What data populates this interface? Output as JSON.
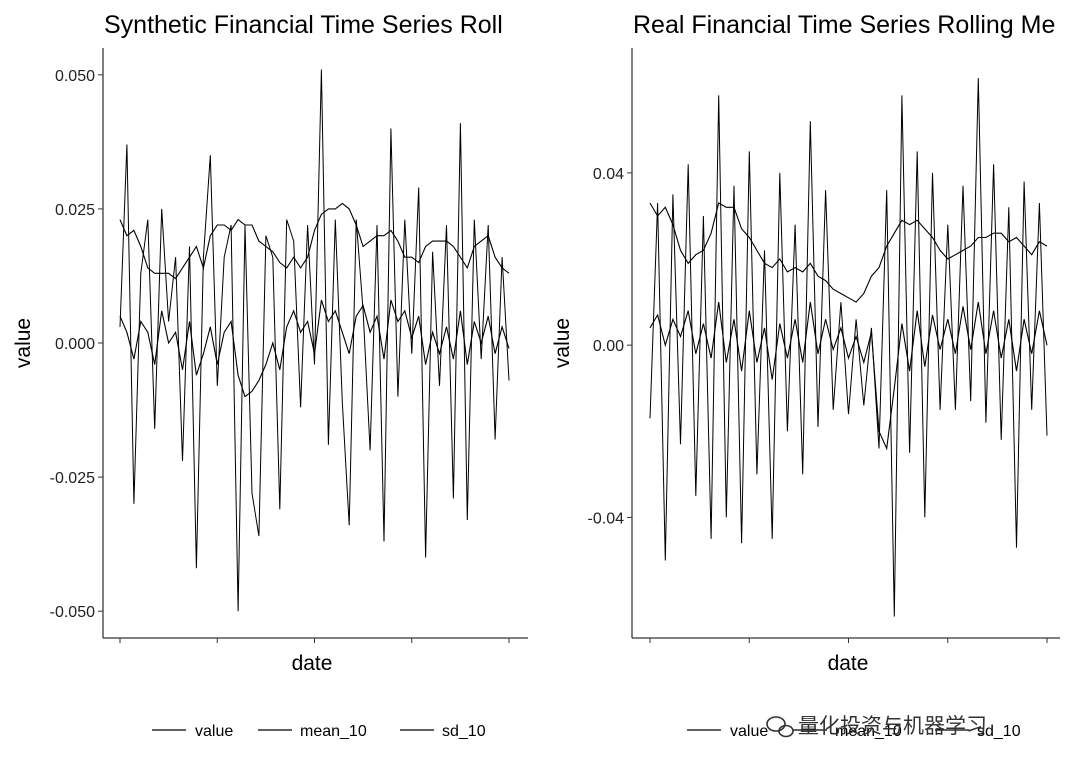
{
  "watermark": "量化投资与机器学习",
  "line_color": "#000000",
  "chart_data": [
    {
      "type": "line",
      "title": "Synthetic Financial Time Series Roll",
      "xlabel": "date",
      "ylabel": "value",
      "x_tick_count": 5,
      "ylim": [
        -0.055,
        0.055
      ],
      "yticks": [
        -0.05,
        -0.025,
        0.0,
        0.025,
        0.05
      ],
      "ytick_labels": [
        "-0.050",
        "-0.025",
        "0.000",
        "0.025",
        "0.050"
      ],
      "legend": {
        "position": "bottom",
        "labels": [
          "value",
          "mean_10",
          "sd_10"
        ]
      },
      "series": [
        {
          "name": "value",
          "values": [
            0.003,
            0.037,
            -0.03,
            0.013,
            0.023,
            -0.016,
            0.025,
            0.004,
            0.016,
            -0.022,
            0.018,
            -0.042,
            0.016,
            0.035,
            -0.008,
            0.016,
            0.022,
            -0.05,
            0.022,
            -0.028,
            -0.036,
            0.02,
            0.016,
            -0.031,
            0.023,
            0.019,
            -0.012,
            0.022,
            -0.004,
            0.051,
            -0.019,
            0.023,
            -0.011,
            -0.034,
            0.023,
            0.006,
            -0.02,
            0.022,
            -0.037,
            0.04,
            -0.01,
            0.023,
            -0.002,
            0.029,
            -0.04,
            0.017,
            -0.008,
            0.022,
            -0.029,
            0.041,
            -0.033,
            0.023,
            -0.003,
            0.022,
            -0.018,
            0.016,
            -0.007
          ]
        },
        {
          "name": "mean_10",
          "values": [
            0.005,
            0.002,
            -0.003,
            0.004,
            0.002,
            -0.004,
            0.006,
            0.0,
            0.002,
            -0.005,
            0.004,
            -0.006,
            -0.002,
            0.003,
            -0.004,
            0.002,
            0.004,
            -0.006,
            -0.01,
            -0.009,
            -0.007,
            -0.004,
            0.0,
            -0.005,
            0.003,
            0.006,
            0.002,
            0.004,
            -0.002,
            0.008,
            0.004,
            0.006,
            0.002,
            -0.002,
            0.005,
            0.007,
            0.002,
            0.005,
            -0.003,
            0.008,
            0.004,
            0.006,
            0.001,
            0.005,
            -0.004,
            0.002,
            -0.002,
            0.003,
            -0.003,
            0.006,
            -0.004,
            0.004,
            0.0,
            0.005,
            -0.002,
            0.003,
            -0.001
          ]
        },
        {
          "name": "sd_10",
          "values": [
            0.023,
            0.02,
            0.021,
            0.018,
            0.014,
            0.013,
            0.013,
            0.013,
            0.012,
            0.014,
            0.016,
            0.018,
            0.014,
            0.02,
            0.022,
            0.022,
            0.021,
            0.023,
            0.022,
            0.022,
            0.019,
            0.018,
            0.017,
            0.015,
            0.014,
            0.016,
            0.014,
            0.016,
            0.021,
            0.024,
            0.025,
            0.025,
            0.026,
            0.025,
            0.022,
            0.018,
            0.019,
            0.02,
            0.02,
            0.021,
            0.019,
            0.016,
            0.016,
            0.015,
            0.018,
            0.019,
            0.019,
            0.019,
            0.018,
            0.016,
            0.014,
            0.018,
            0.019,
            0.02,
            0.016,
            0.014,
            0.013
          ]
        }
      ]
    },
    {
      "type": "line",
      "title": "Real Financial Time Series Rolling Me",
      "xlabel": "date",
      "ylabel": "value",
      "x_tick_count": 5,
      "ylim": [
        -0.068,
        0.069
      ],
      "yticks": [
        -0.04,
        0.0,
        0.04
      ],
      "ytick_labels": [
        "-0.04",
        "0.00",
        "0.04"
      ],
      "legend": {
        "position": "bottom",
        "labels": [
          "value",
          "mean_10",
          "sd_10"
        ]
      },
      "series": [
        {
          "name": "value",
          "values": [
            -0.017,
            0.033,
            -0.05,
            0.035,
            -0.023,
            0.042,
            -0.035,
            0.03,
            -0.045,
            0.058,
            -0.04,
            0.037,
            -0.046,
            0.045,
            -0.03,
            0.022,
            -0.045,
            0.04,
            -0.02,
            0.028,
            -0.03,
            0.052,
            -0.019,
            0.036,
            -0.015,
            0.01,
            -0.016,
            0.006,
            -0.014,
            0.004,
            -0.024,
            0.036,
            -0.063,
            0.058,
            -0.025,
            0.045,
            -0.04,
            0.04,
            -0.015,
            0.028,
            -0.015,
            0.037,
            -0.013,
            0.062,
            -0.018,
            0.042,
            -0.022,
            0.032,
            -0.047,
            0.038,
            -0.015,
            0.033,
            -0.021
          ]
        },
        {
          "name": "mean_10",
          "values": [
            0.004,
            0.007,
            0.0,
            0.006,
            0.002,
            0.008,
            -0.002,
            0.005,
            -0.003,
            0.01,
            -0.004,
            0.006,
            -0.006,
            0.008,
            -0.004,
            0.004,
            -0.008,
            0.005,
            -0.003,
            0.006,
            -0.004,
            0.01,
            -0.002,
            0.006,
            -0.001,
            0.004,
            -0.003,
            0.002,
            -0.004,
            0.003,
            -0.02,
            -0.024,
            -0.01,
            0.005,
            -0.006,
            0.008,
            -0.005,
            0.007,
            -0.001,
            0.006,
            -0.002,
            0.009,
            -0.001,
            0.01,
            -0.002,
            0.008,
            -0.003,
            0.006,
            -0.006,
            0.006,
            -0.002,
            0.008,
            0.0
          ]
        },
        {
          "name": "sd_10",
          "values": [
            0.033,
            0.03,
            0.032,
            0.028,
            0.022,
            0.019,
            0.021,
            0.022,
            0.026,
            0.033,
            0.032,
            0.032,
            0.027,
            0.025,
            0.022,
            0.019,
            0.018,
            0.02,
            0.017,
            0.018,
            0.017,
            0.019,
            0.016,
            0.015,
            0.013,
            0.012,
            0.011,
            0.01,
            0.012,
            0.016,
            0.018,
            0.023,
            0.026,
            0.029,
            0.028,
            0.029,
            0.027,
            0.025,
            0.022,
            0.02,
            0.021,
            0.022,
            0.023,
            0.025,
            0.025,
            0.026,
            0.026,
            0.024,
            0.025,
            0.023,
            0.021,
            0.024,
            0.023
          ]
        }
      ]
    }
  ]
}
